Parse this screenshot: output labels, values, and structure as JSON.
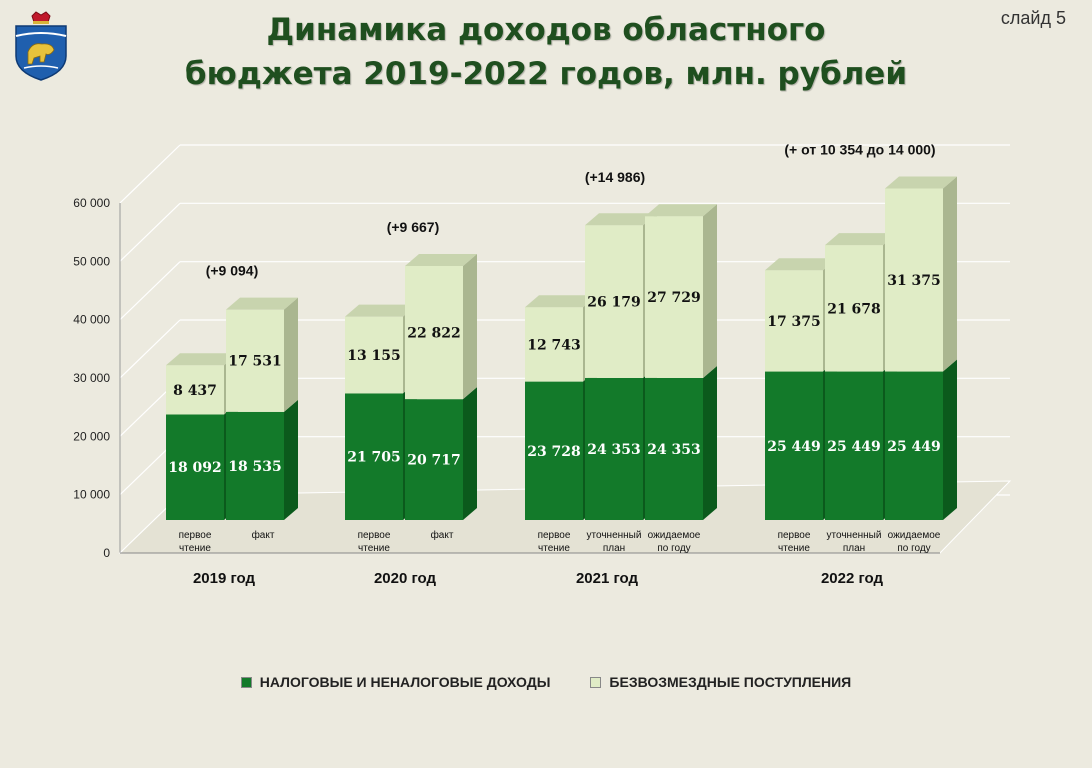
{
  "header": {
    "title_line1": "Динамика доходов областного",
    "title_line2": "бюджета 2019-2022 годов, млн. рублей",
    "slide": "слайд  5",
    "logo_icon": "regional-coat-of-arms"
  },
  "colors": {
    "dark_green": "#137a2a",
    "dark_green_side": "#0b5a1c",
    "light_green": "#e0ecc6",
    "light_green_side": "#aab690",
    "title": "#1f4f1f"
  },
  "legend": [
    {
      "label": "НАЛОГОВЫЕ И НЕНАЛОГОВЫЕ ДОХОДЫ",
      "color": "#137a2a"
    },
    {
      "label": "БЕЗВОЗМЕЗДНЫЕ ПОСТУПЛЕНИЯ",
      "color": "#e0ecc6"
    }
  ],
  "chart_data": {
    "type": "bar",
    "stacked": true,
    "three_d": true,
    "ylim": [
      0,
      60000
    ],
    "yticks": [
      "0",
      "10 000",
      "20 000",
      "30 000",
      "40 000",
      "50 000",
      "60 000"
    ],
    "grid": true,
    "legend_position": "bottom",
    "groups": [
      {
        "label": "2019 год",
        "delta": "(+9 094)",
        "bars": [
          {
            "cat": [
              "первое",
              "чтение"
            ],
            "tax": 18092,
            "grant": 8437,
            "tax_label": "18 092",
            "grant_label": "8 437"
          },
          {
            "cat": [
              "факт"
            ],
            "tax": 18535,
            "grant": 17531,
            "tax_label": "18 535",
            "grant_label": "17 531"
          }
        ]
      },
      {
        "label": "2020 год",
        "delta": "(+9 667)",
        "bars": [
          {
            "cat": [
              "первое",
              "чтение"
            ],
            "tax": 21705,
            "grant": 13155,
            "tax_label": "21 705",
            "grant_label": "13 155"
          },
          {
            "cat": [
              "факт"
            ],
            "tax": 20717,
            "grant": 22822,
            "tax_label": "20 717",
            "grant_label": "22 822"
          }
        ]
      },
      {
        "label": "2021 год",
        "delta": "(+14 986)",
        "bars": [
          {
            "cat": [
              "первое",
              "чтение"
            ],
            "tax": 23728,
            "grant": 12743,
            "tax_label": "23 728",
            "grant_label": "12 743"
          },
          {
            "cat": [
              "уточненный",
              "план"
            ],
            "tax": 24353,
            "grant": 26179,
            "tax_label": "24 353",
            "grant_label": "26 179"
          },
          {
            "cat": [
              "ожидаемое",
              "по году"
            ],
            "tax": 24353,
            "grant": 27729,
            "tax_label": "24 353",
            "grant_label": "27 729"
          }
        ]
      },
      {
        "label": "2022 год",
        "delta": "(+ от 10 354 до 14 000)",
        "bars": [
          {
            "cat": [
              "первое",
              "чтение"
            ],
            "tax": 25449,
            "grant": 17375,
            "tax_label": "25 449",
            "grant_label": "17 375"
          },
          {
            "cat": [
              "уточненный",
              "план"
            ],
            "tax": 25449,
            "grant": 21678,
            "tax_label": "25 449",
            "grant_label": "21 678"
          },
          {
            "cat": [
              "ожидаемое",
              "по году"
            ],
            "tax": 25449,
            "grant": 31375,
            "tax_label": "25 449",
            "grant_label": "31 375"
          }
        ]
      }
    ]
  }
}
